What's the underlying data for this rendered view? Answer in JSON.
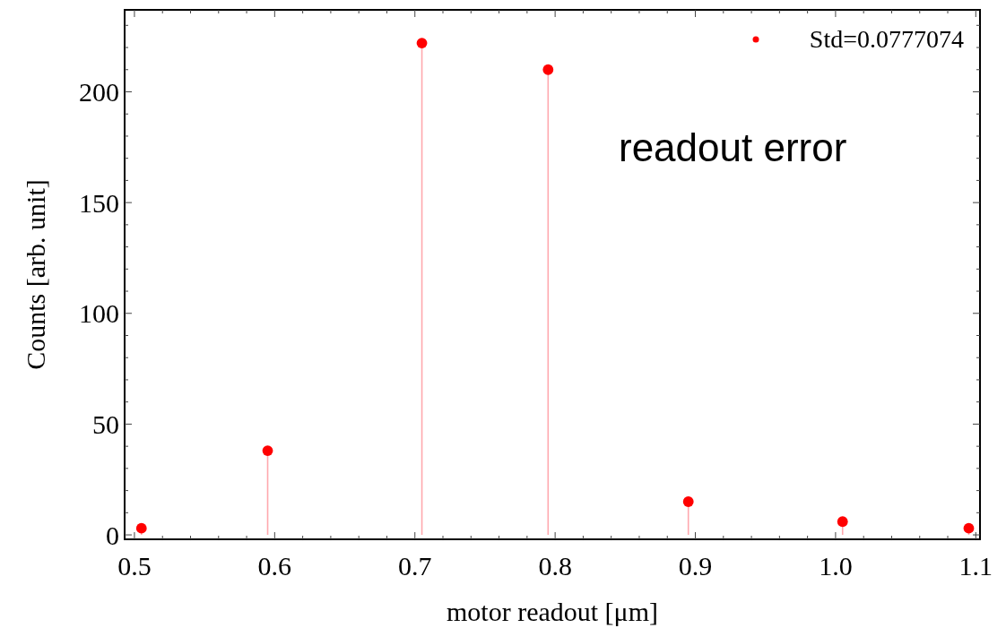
{
  "chart_data": {
    "type": "lollipop",
    "xlabel": "motor readout [μm]",
    "ylabel": "Counts [arb. unit]",
    "annotations": [
      "readout error"
    ],
    "x": [
      0.505,
      0.595,
      0.705,
      0.795,
      0.895,
      1.005,
      1.095
    ],
    "series": [
      {
        "name": "Std=0.0777074",
        "color": "#ff0000",
        "values": [
          3,
          38,
          222,
          210,
          15,
          6,
          3
        ]
      }
    ],
    "xlim": [
      0.493,
      1.103
    ],
    "ylim": [
      -2,
      237
    ],
    "xticks": [
      0.5,
      {
        "value": 0.52,
        "label": null
      },
      {
        "value": 0.54,
        "label": null
      },
      {
        "value": 0.56,
        "label": null
      },
      {
        "value": 0.58,
        "label": null
      },
      0.6,
      {
        "value": 0.62,
        "label": null
      },
      {
        "value": 0.64,
        "label": null
      },
      {
        "value": 0.66,
        "label": null
      },
      {
        "value": 0.68,
        "label": null
      },
      0.7,
      {
        "value": 0.72,
        "label": null
      },
      {
        "value": 0.74,
        "label": null
      },
      {
        "value": 0.76,
        "label": null
      },
      {
        "value": 0.78,
        "label": null
      },
      0.8,
      {
        "value": 0.82,
        "label": null
      },
      {
        "value": 0.84,
        "label": null
      },
      {
        "value": 0.86,
        "label": null
      },
      {
        "value": 0.88,
        "label": null
      },
      0.9,
      {
        "value": 0.92,
        "label": null
      },
      {
        "value": 0.94,
        "label": null
      },
      {
        "value": 0.96,
        "label": null
      },
      {
        "value": 0.98,
        "label": null
      },
      {
        "value": 1.0,
        "label": "1.0"
      },
      {
        "value": 1.02,
        "label": null
      },
      {
        "value": 1.04,
        "label": null
      },
      {
        "value": 1.06,
        "label": null
      },
      {
        "value": 1.08,
        "label": null
      },
      1.1
    ],
    "yticks": [
      0,
      {
        "value": 10,
        "label": null
      },
      {
        "value": 20,
        "label": null
      },
      {
        "value": 30,
        "label": null
      },
      {
        "value": 40,
        "label": null
      },
      50,
      {
        "value": 60,
        "label": null
      },
      {
        "value": 70,
        "label": null
      },
      {
        "value": 80,
        "label": null
      },
      {
        "value": 90,
        "label": null
      },
      100,
      {
        "value": 110,
        "label": null
      },
      {
        "value": 120,
        "label": null
      },
      {
        "value": 130,
        "label": null
      },
      {
        "value": 140,
        "label": null
      },
      150,
      {
        "value": 160,
        "label": null
      },
      {
        "value": 170,
        "label": null
      },
      {
        "value": 180,
        "label": null
      },
      {
        "value": 190,
        "label": null
      },
      200,
      {
        "value": 210,
        "label": null
      },
      {
        "value": 220,
        "label": null
      },
      {
        "value": 230,
        "label": null
      }
    ],
    "marker": "circle",
    "legend": "top right",
    "grid": false
  }
}
